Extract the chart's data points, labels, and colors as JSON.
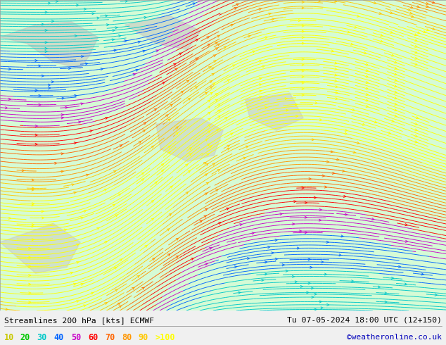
{
  "title_left": "Streamlines 200 hPa [kts] ECMWF",
  "title_right": "Tu 07-05-2024 18:00 UTC (12+150)",
  "watermark": "©weatheronline.co.uk",
  "legend_values": [
    "10",
    "20",
    "30",
    "40",
    "50",
    "60",
    "70",
    "80",
    "90",
    ">100"
  ],
  "legend_colors": [
    "#c8c800",
    "#00c800",
    "#00c8c8",
    "#0064ff",
    "#c800c8",
    "#ff0000",
    "#ff6400",
    "#ff9600",
    "#ffc800",
    "#ffff00"
  ],
  "fig_width": 6.34,
  "fig_height": 4.9,
  "dpi": 100,
  "bg_color": "#f0f0f0",
  "map_bg": "#e8e8e8",
  "speed_levels": [
    0,
    10,
    20,
    30,
    40,
    50,
    60,
    70,
    80,
    90,
    100,
    300
  ],
  "speed_colors": [
    "#888888",
    "#c8c800",
    "#00c800",
    "#00c8c8",
    "#0064ff",
    "#c800c8",
    "#ff0000",
    "#ff6400",
    "#ff9600",
    "#ffc800",
    "#ffff00"
  ],
  "jet_shade_color": "#c8ffc8",
  "land_color": "#c8c8c0"
}
